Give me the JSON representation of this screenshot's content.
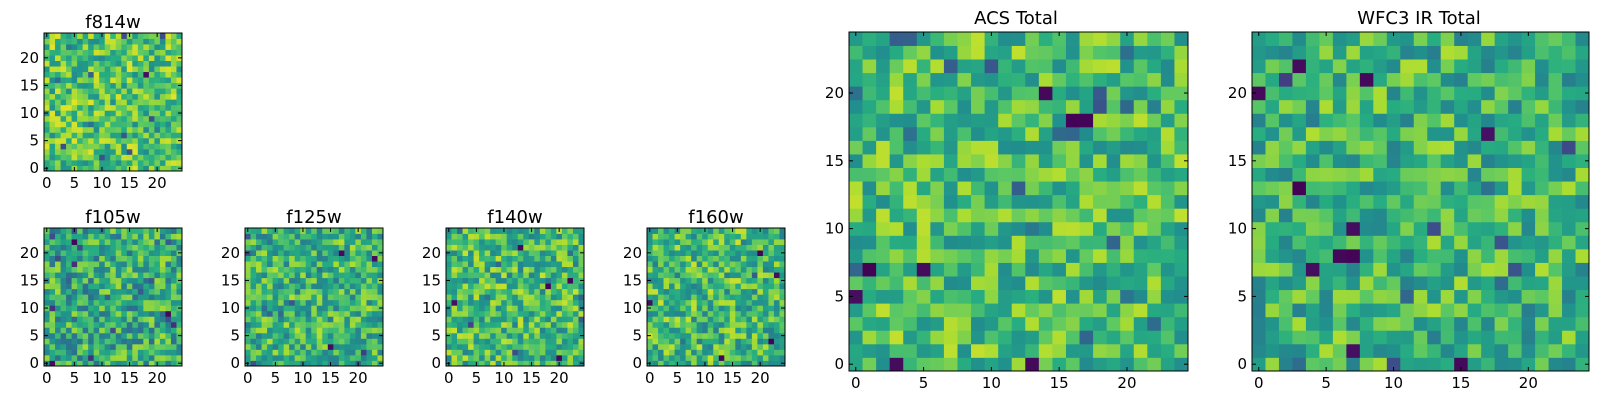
{
  "chart_data": [
    {
      "id": "f814w",
      "type": "heatmap",
      "title": "f814w",
      "grid_size": [
        25,
        25
      ],
      "colormap": "viridis",
      "xticks": [
        0,
        5,
        10,
        15,
        20
      ],
      "yticks": [
        0,
        5,
        10,
        15,
        20
      ],
      "xtick_labels": [
        "0",
        "5",
        "10",
        "15",
        "20"
      ],
      "ytick_labels": [
        "0",
        "5",
        "10",
        "15",
        "20"
      ],
      "xlim": [
        -0.5,
        24.5
      ],
      "ylim": [
        -0.5,
        24.5
      ],
      "seed": 11,
      "mean": 0.72,
      "spread": 0.24,
      "dark_pixels": [
        [
          18,
          17
        ]
      ]
    },
    {
      "id": "f105w",
      "type": "heatmap",
      "title": "f105w",
      "grid_size": [
        25,
        25
      ],
      "colormap": "viridis",
      "xticks": [
        0,
        5,
        10,
        15,
        20
      ],
      "yticks": [
        0,
        5,
        10,
        15,
        20
      ],
      "xtick_labels": [
        "0",
        "5",
        "10",
        "15",
        "20"
      ],
      "ytick_labels": [
        "0",
        "5",
        "10",
        "15",
        "20"
      ],
      "xlim": [
        -0.5,
        24.5
      ],
      "ylim": [
        -0.5,
        24.5
      ],
      "seed": 23,
      "mean": 0.62,
      "spread": 0.26,
      "dark_pixels": [
        [
          1,
          0
        ],
        [
          5,
          22
        ],
        [
          22,
          9
        ]
      ]
    },
    {
      "id": "f125w",
      "type": "heatmap",
      "title": "f125w",
      "grid_size": [
        25,
        25
      ],
      "colormap": "viridis",
      "xticks": [
        0,
        5,
        10,
        15,
        20
      ],
      "yticks": [
        0,
        5,
        10,
        15,
        20
      ],
      "xtick_labels": [
        "0",
        "5",
        "10",
        "15",
        "20"
      ],
      "ytick_labels": [
        "0",
        "5",
        "10",
        "15",
        "20"
      ],
      "xlim": [
        -0.5,
        24.5
      ],
      "ylim": [
        -0.5,
        24.5
      ],
      "seed": 37,
      "mean": 0.66,
      "spread": 0.24,
      "dark_pixels": [
        [
          17,
          20
        ],
        [
          23,
          19
        ],
        [
          15,
          3
        ]
      ]
    },
    {
      "id": "f140w",
      "type": "heatmap",
      "title": "f140w",
      "grid_size": [
        25,
        25
      ],
      "colormap": "viridis",
      "xticks": [
        0,
        5,
        10,
        15,
        20
      ],
      "yticks": [
        0,
        5,
        10,
        15,
        20
      ],
      "xtick_labels": [
        "0",
        "5",
        "10",
        "15",
        "20"
      ],
      "ytick_labels": [
        "0",
        "5",
        "10",
        "15",
        "20"
      ],
      "xlim": [
        -0.5,
        24.5
      ],
      "ylim": [
        -0.5,
        24.5
      ],
      "seed": 41,
      "mean": 0.68,
      "spread": 0.24,
      "dark_pixels": [
        [
          13,
          21
        ],
        [
          1,
          11
        ],
        [
          18,
          14
        ],
        [
          22,
          15
        ],
        [
          20,
          1
        ]
      ]
    },
    {
      "id": "f160w",
      "type": "heatmap",
      "title": "f160w",
      "grid_size": [
        25,
        25
      ],
      "colormap": "viridis",
      "xticks": [
        0,
        5,
        10,
        15,
        20
      ],
      "yticks": [
        0,
        5,
        10,
        15,
        20
      ],
      "xtick_labels": [
        "0",
        "5",
        "10",
        "15",
        "20"
      ],
      "ytick_labels": [
        "0",
        "5",
        "10",
        "15",
        "20"
      ],
      "xlim": [
        -0.5,
        24.5
      ],
      "ylim": [
        -0.5,
        24.5
      ],
      "seed": 53,
      "mean": 0.68,
      "spread": 0.25,
      "dark_pixels": [
        [
          20,
          20
        ],
        [
          0,
          11
        ],
        [
          23,
          16
        ],
        [
          22,
          4
        ],
        [
          13,
          1
        ]
      ]
    },
    {
      "id": "acs_total",
      "type": "heatmap",
      "title": "ACS Total",
      "grid_size": [
        25,
        25
      ],
      "colormap": "viridis",
      "xticks": [
        0,
        5,
        10,
        15,
        20
      ],
      "yticks": [
        0,
        5,
        10,
        15,
        20
      ],
      "xtick_labels": [
        "0",
        "5",
        "10",
        "15",
        "20"
      ],
      "ytick_labels": [
        "0",
        "5",
        "10",
        "15",
        "20"
      ],
      "xlim": [
        -0.5,
        24.5
      ],
      "ylim": [
        -0.5,
        24.5
      ],
      "seed": 67,
      "mean": 0.7,
      "spread": 0.22,
      "dark_pixels": [
        [
          14,
          20
        ],
        [
          16,
          18
        ],
        [
          17,
          18
        ],
        [
          1,
          7
        ],
        [
          5,
          7
        ],
        [
          0,
          5
        ],
        [
          3,
          0
        ],
        [
          13,
          0
        ]
      ]
    },
    {
      "id": "wfc3_ir_total",
      "type": "heatmap",
      "title": "WFC3 IR Total",
      "grid_size": [
        25,
        25
      ],
      "colormap": "viridis",
      "xticks": [
        0,
        5,
        10,
        15,
        20
      ],
      "yticks": [
        0,
        5,
        10,
        15,
        20
      ],
      "xtick_labels": [
        "0",
        "5",
        "10",
        "15",
        "20"
      ],
      "ytick_labels": [
        "0",
        "5",
        "10",
        "15",
        "20"
      ],
      "xlim": [
        -0.5,
        24.5
      ],
      "ylim": [
        -0.5,
        24.5
      ],
      "seed": 79,
      "mean": 0.66,
      "spread": 0.23,
      "dark_pixels": [
        [
          0,
          20
        ],
        [
          3,
          22
        ],
        [
          8,
          21
        ],
        [
          17,
          17
        ],
        [
          3,
          13
        ],
        [
          7,
          10
        ],
        [
          7,
          8
        ],
        [
          6,
          8
        ],
        [
          4,
          7
        ],
        [
          7,
          1
        ],
        [
          15,
          0
        ]
      ]
    }
  ]
}
